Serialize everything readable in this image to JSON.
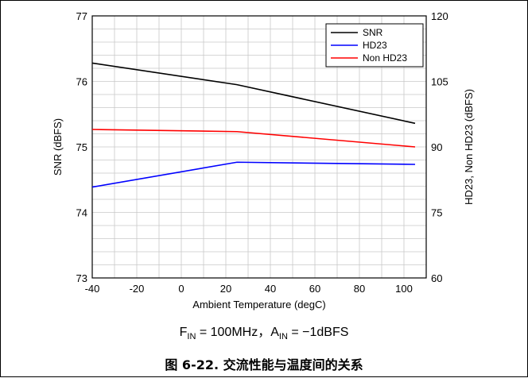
{
  "chart_data": {
    "type": "line",
    "title": "",
    "xlabel": "Ambient Temperature (degC)",
    "ylabel": "SNR (dBFS)",
    "y2label": "HD23, Non HD23 (dBFS)",
    "xlim": [
      -40,
      110
    ],
    "ylim": [
      73,
      77
    ],
    "y2lim": [
      60,
      120
    ],
    "x_ticks": [
      -40,
      -20,
      0,
      20,
      40,
      60,
      80,
      100
    ],
    "y_ticks": [
      73,
      74,
      75,
      76,
      77
    ],
    "y2_ticks": [
      60,
      75,
      90,
      105,
      120
    ],
    "grid": true,
    "legend_position": "top-right",
    "series": [
      {
        "name": "SNR",
        "axis": "left",
        "color": "#000000",
        "x": [
          -40,
          25,
          105
        ],
        "y": [
          76.28,
          75.95,
          75.36
        ]
      },
      {
        "name": "HD23",
        "axis": "right",
        "color": "#0000ff",
        "x": [
          -40,
          25,
          105
        ],
        "y": [
          80.8,
          86.5,
          86.0
        ]
      },
      {
        "name": "Non HD23",
        "axis": "right",
        "color": "#ff0000",
        "x": [
          -40,
          25,
          105
        ],
        "y": [
          94.0,
          93.5,
          90.0
        ]
      }
    ]
  },
  "condition": {
    "f_main": "F",
    "f_sub": "IN",
    "f_value": " = 100MHz，",
    "a_main": "A",
    "a_sub": "IN",
    "a_value": " = −1dBFS"
  },
  "caption": "图 6-22. 交流性能与温度间的关系"
}
